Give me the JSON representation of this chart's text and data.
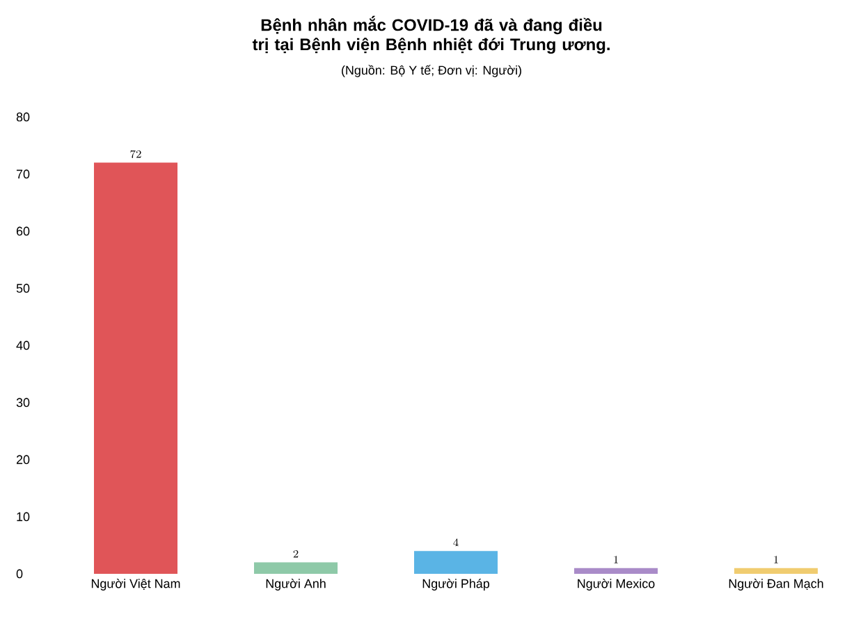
{
  "chart_data": {
    "type": "bar",
    "title": "Bệnh nhân mắc COVID-19 đã và đang điều trị tại Bệnh viện Bệnh nhiệt đới Trung ương.",
    "subtitle": "(Nguồn: Bộ Y tế; Đơn vị: Người)",
    "categories": [
      "Người Việt Nam",
      "Người Anh",
      "Người Pháp",
      "Người Mexico",
      "Người Đan Mạch"
    ],
    "values": [
      72,
      2,
      4,
      1,
      1
    ],
    "colors": [
      "#e05558",
      "#8ec9a8",
      "#5ab4e5",
      "#a98bc8",
      "#f0cc70"
    ],
    "ylim": [
      0,
      80
    ],
    "yticks": [
      0,
      10,
      20,
      30,
      40,
      50,
      60,
      70,
      80
    ],
    "data_labels": true,
    "grid": false
  }
}
